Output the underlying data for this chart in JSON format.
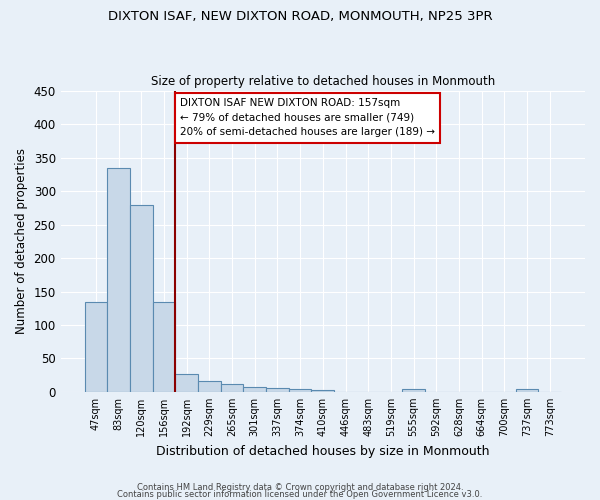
{
  "title1": "DIXTON ISAF, NEW DIXTON ROAD, MONMOUTH, NP25 3PR",
  "title2": "Size of property relative to detached houses in Monmouth",
  "xlabel": "Distribution of detached houses by size in Monmouth",
  "ylabel": "Number of detached properties",
  "footer1": "Contains HM Land Registry data © Crown copyright and database right 2024.",
  "footer2": "Contains public sector information licensed under the Open Government Licence v3.0.",
  "annotation_line1": "DIXTON ISAF NEW DIXTON ROAD: 157sqm",
  "annotation_line2": "← 79% of detached houses are smaller (749)",
  "annotation_line3": "20% of semi-detached houses are larger (189) →",
  "bar_labels": [
    "47sqm",
    "83sqm",
    "120sqm",
    "156sqm",
    "192sqm",
    "229sqm",
    "265sqm",
    "301sqm",
    "337sqm",
    "374sqm",
    "410sqm",
    "446sqm",
    "483sqm",
    "519sqm",
    "555sqm",
    "592sqm",
    "628sqm",
    "664sqm",
    "700sqm",
    "737sqm",
    "773sqm"
  ],
  "bar_values": [
    135,
    335,
    280,
    135,
    27,
    16,
    12,
    7,
    6,
    4,
    2,
    0,
    0,
    0,
    4,
    0,
    0,
    0,
    0,
    4,
    0
  ],
  "bar_color": "#c8d8e8",
  "bar_edge_color": "#5a8ab0",
  "vline_color": "#8b0000",
  "vline_x": 3.5,
  "background_color": "#e8f0f8",
  "grid_color": "#ffffff",
  "annotation_box_edge": "#cc0000",
  "ylim": [
    0,
    450
  ],
  "yticks": [
    0,
    50,
    100,
    150,
    200,
    250,
    300,
    350,
    400,
    450
  ]
}
